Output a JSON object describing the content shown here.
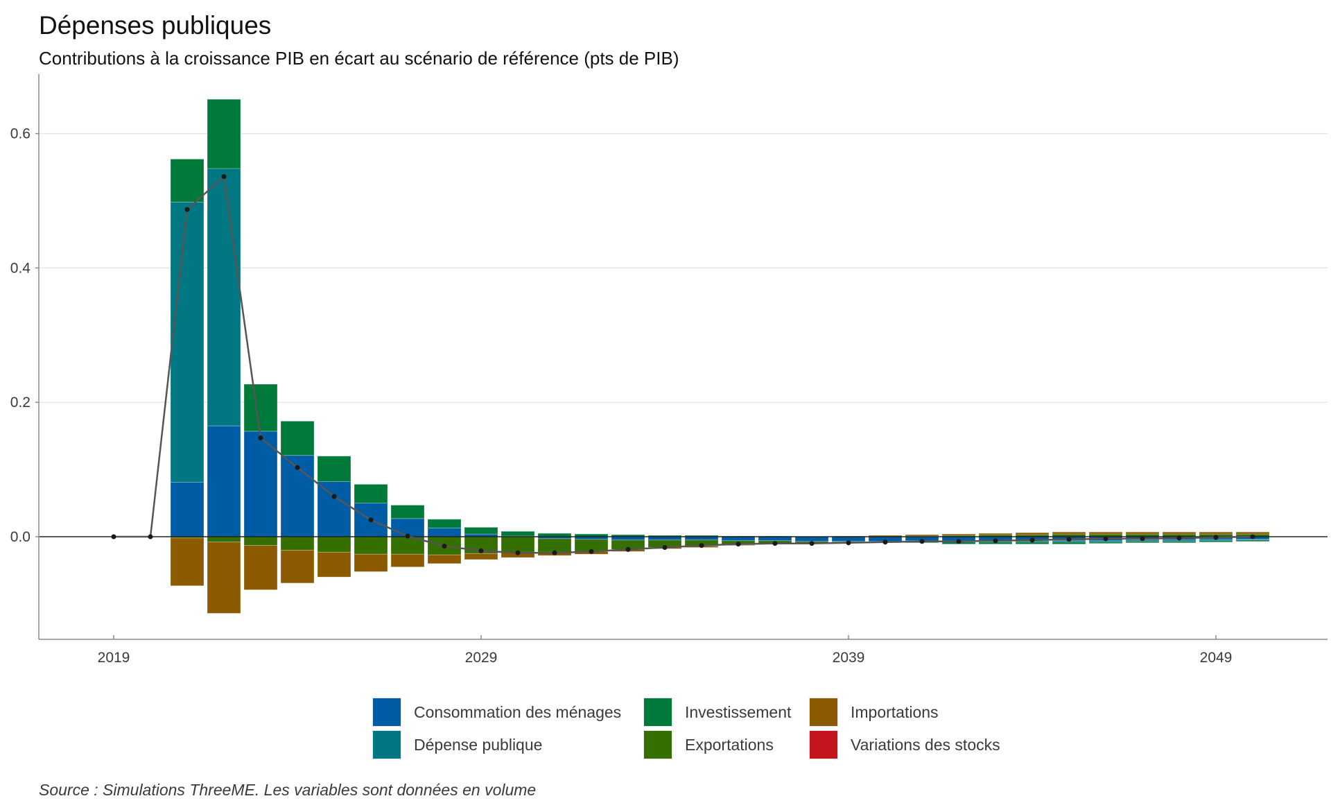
{
  "title": "Dépenses publiques",
  "subtitle": "Contributions à la croissance PIB en écart au scénario de référence (pts de PIB)",
  "source": "Source : Simulations ThreeME. Les variables sont données en volume",
  "legend": [
    {
      "key": "cons",
      "label": "Consommation des ménages",
      "color": "#005DA5"
    },
    {
      "key": "dep",
      "label": "Dépense publique",
      "color": "#007783"
    },
    {
      "key": "inv",
      "label": "Investissement",
      "color": "#007A3A"
    },
    {
      "key": "exp",
      "label": "Exportations",
      "color": "#356F00"
    },
    {
      "key": "imp",
      "label": "Importations",
      "color": "#8C5A00"
    },
    {
      "key": "stk",
      "label": "Variations des stocks",
      "color": "#C4151C"
    }
  ],
  "chart_data": {
    "type": "bar",
    "stacked": true,
    "title": "Dépenses publiques",
    "subtitle": "Contributions à la croissance PIB en écart au scénario de référence (pts de PIB)",
    "xlabel": "",
    "ylabel": "",
    "ylim": [
      -0.15,
      0.7
    ],
    "xlim": [
      2017,
      2052
    ],
    "yticks": [
      0.0,
      0.2,
      0.4,
      0.6
    ],
    "ytick_labels": [
      "0.0",
      "0.2",
      "0.4",
      "0.6"
    ],
    "xticks": [
      2019,
      2029,
      2039,
      2049
    ],
    "xtick_labels": [
      "2019",
      "2029",
      "2039",
      "2049"
    ],
    "grid": "horizontal",
    "legend_position": "bottom",
    "x": [
      2019,
      2020,
      2021,
      2022,
      2023,
      2024,
      2025,
      2026,
      2027,
      2028,
      2029,
      2030,
      2031,
      2032,
      2033,
      2034,
      2035,
      2036,
      2037,
      2038,
      2039,
      2040,
      2041,
      2042,
      2043,
      2044,
      2045,
      2046,
      2047,
      2048,
      2049,
      2050
    ],
    "series": [
      {
        "name": "Consommation des ménages",
        "key": "cons",
        "values": [
          0,
          0,
          0.081,
          0.165,
          0.157,
          0.121,
          0.082,
          0.05,
          0.027,
          0.013,
          0.004,
          0.001,
          -0.003,
          -0.004,
          -0.005,
          -0.005,
          -0.005,
          -0.006,
          -0.006,
          -0.007,
          -0.007,
          -0.007,
          -0.006,
          -0.006,
          -0.006,
          -0.006,
          -0.006,
          -0.006,
          -0.005,
          -0.005,
          -0.004,
          -0.004
        ]
      },
      {
        "name": "Dépense publique",
        "key": "dep",
        "values": [
          0,
          0,
          0.417,
          0.383,
          0,
          0,
          0,
          0,
          0,
          0,
          0,
          0,
          0,
          0,
          0,
          0,
          0,
          0,
          0,
          0,
          0,
          -0.001,
          -0.001,
          -0.002,
          -0.002,
          -0.002,
          -0.002,
          -0.002,
          -0.002,
          -0.002,
          -0.002,
          -0.001
        ]
      },
      {
        "name": "Investissement",
        "key": "inv",
        "values": [
          0,
          0,
          0.064,
          0.103,
          0.07,
          0.051,
          0.038,
          0.028,
          0.02,
          0.013,
          0.01,
          0.007,
          0.005,
          0.004,
          0.003,
          0.002,
          0.002,
          0.001,
          0.001,
          0,
          0,
          -0.001,
          -0.002,
          -0.003,
          -0.003,
          -0.003,
          -0.003,
          -0.002,
          -0.002,
          -0.002,
          -0.002,
          -0.002
        ]
      },
      {
        "name": "Exportations",
        "key": "exp",
        "values": [
          0,
          0,
          -0.002,
          -0.008,
          -0.013,
          -0.02,
          -0.023,
          -0.026,
          -0.026,
          -0.027,
          -0.025,
          -0.023,
          -0.02,
          -0.018,
          -0.014,
          -0.011,
          -0.009,
          -0.006,
          -0.004,
          -0.002,
          -0.001,
          0,
          0.001,
          0.002,
          0.003,
          0.003,
          0.004,
          0.004,
          0.004,
          0.004,
          0.004,
          0.004
        ]
      },
      {
        "name": "Importations",
        "key": "imp",
        "values": [
          0,
          0,
          -0.071,
          -0.106,
          -0.066,
          -0.049,
          -0.037,
          -0.026,
          -0.019,
          -0.013,
          -0.009,
          -0.008,
          -0.005,
          -0.004,
          -0.003,
          -0.002,
          -0.002,
          -0.001,
          -0.001,
          0,
          0.001,
          0.002,
          0.002,
          0.002,
          0.002,
          0.003,
          0.003,
          0.003,
          0.003,
          0.003,
          0.003,
          0.003
        ]
      },
      {
        "name": "Variations des stocks",
        "key": "stk",
        "values": [
          0,
          0,
          0,
          0,
          0,
          0,
          0,
          0,
          0,
          0,
          0,
          0,
          0,
          0,
          0,
          0,
          0,
          0,
          0,
          0,
          0,
          0,
          0,
          0,
          0,
          0,
          0,
          0,
          0,
          0,
          0,
          0
        ]
      }
    ],
    "total_line": {
      "name": "PIB",
      "values": [
        0,
        0,
        0.487,
        0.536,
        0.147,
        0.103,
        0.06,
        0.025,
        0.001,
        -0.014,
        -0.021,
        -0.024,
        -0.024,
        -0.022,
        -0.019,
        -0.016,
        -0.013,
        -0.011,
        -0.01,
        -0.01,
        -0.009,
        -0.008,
        -0.007,
        -0.007,
        -0.006,
        -0.005,
        -0.004,
        -0.003,
        -0.003,
        -0.002,
        -0.001,
        0.0
      ]
    }
  }
}
